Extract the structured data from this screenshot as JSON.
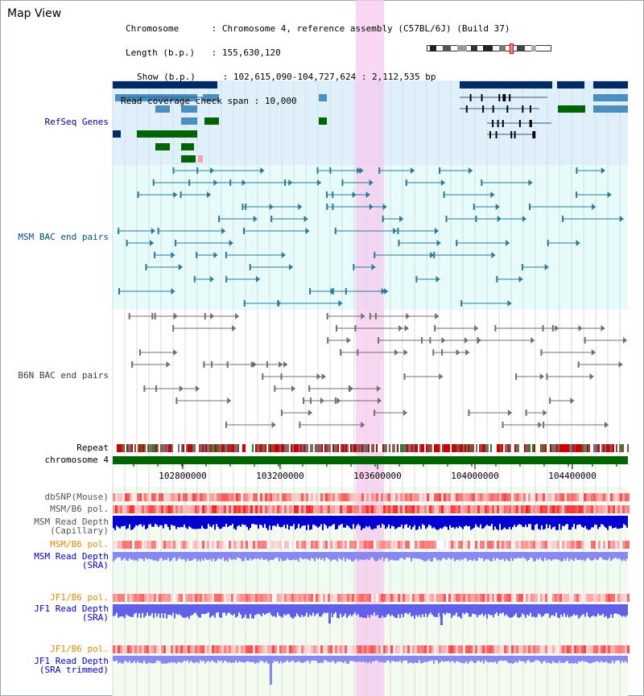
{
  "view_title": "Map View",
  "header": {
    "chromosome_label": "Chromosome",
    "chromosome_value": "Chromosome 4, reference assembly (C57BL/6J) (Build 37)",
    "length_label": "Length (b.p.)",
    "length_value": "155,630,120",
    "show_label": "Show (b.p.)",
    "show_value": "102,615,090-104,727,624 : 2,112,535 bp",
    "coverage_label": "Read coverage check span",
    "coverage_value": "10,000"
  },
  "tracks": {
    "refseq": "RefSeq Genes",
    "msm_bac": "MSM BAC end pairs",
    "b6n_bac": "B6N BAC end pairs",
    "repeat": "Repeat",
    "chromosome": "chromosome 4",
    "dbsnp": "dbSNP(Mouse)",
    "msm_b6_pol_1": "MSM/B6 pol.",
    "msm_depth_cap": "MSM Read Depth\n(Capillary)",
    "msm_b6_pol_2": "MSM/B6 pol.",
    "msm_depth_sra": "MSM Read Depth\n(SRA)",
    "jf1_b6_pol_1": "JF1/B6 pol.",
    "jf1_depth_sra": "JF1 Read Depth\n(SRA)",
    "jf1_b6_pol_2": "JF1/B6 pol.",
    "jf1_depth_trim": "JF1 Read Depth\n(SRA trimmed)"
  },
  "axis_ticks": [
    "102800000",
    "103200000",
    "103600000",
    "104000000",
    "104400000"
  ],
  "colors": {
    "refseq_label": "#00009b",
    "msm_label": "#00507a",
    "b6n_label": "#3a3a3a",
    "gene_dark": "#002a66",
    "gene_mid": "#4a8fbf",
    "gene_green": "#006400",
    "highlight": "#f7c9ee",
    "pol_orange": "#e08c00",
    "depth_blue": "#0000d0"
  }
}
